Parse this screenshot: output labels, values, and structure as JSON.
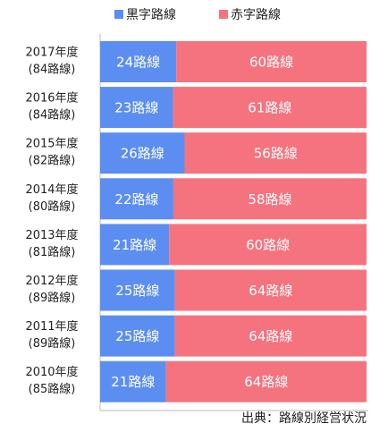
{
  "chart_data": {
    "type": "percent_stacked_barh",
    "categories": [
      "2017年度",
      "2016年度",
      "2015年度",
      "2014年度",
      "2013年度",
      "2012年度",
      "2011年度",
      "2010年度"
    ],
    "category_sublabels": [
      "(84路線)",
      "(84路線)",
      "(82路線)",
      "(80路線)",
      "(81路線)",
      "(89路線)",
      "(89路線)",
      "(85路線)"
    ],
    "series": [
      {
        "name": "黒字路線",
        "color": "#5b8ef0",
        "values": [
          24,
          23,
          26,
          22,
          21,
          25,
          25,
          21
        ],
        "value_labels": [
          "24路線",
          "23路線",
          "26路線",
          "22路線",
          "21路線",
          "25路線",
          "25路線",
          "21路線"
        ]
      },
      {
        "name": "赤字路線",
        "color": "#f5737e",
        "values": [
          60,
          61,
          56,
          58,
          60,
          64,
          64,
          64
        ],
        "value_labels": [
          "60路線",
          "61路線",
          "56路線",
          "58路線",
          "60路線",
          "64路線",
          "64路線",
          "64路線"
        ]
      }
    ],
    "source": "出典：路線別経営状況"
  }
}
